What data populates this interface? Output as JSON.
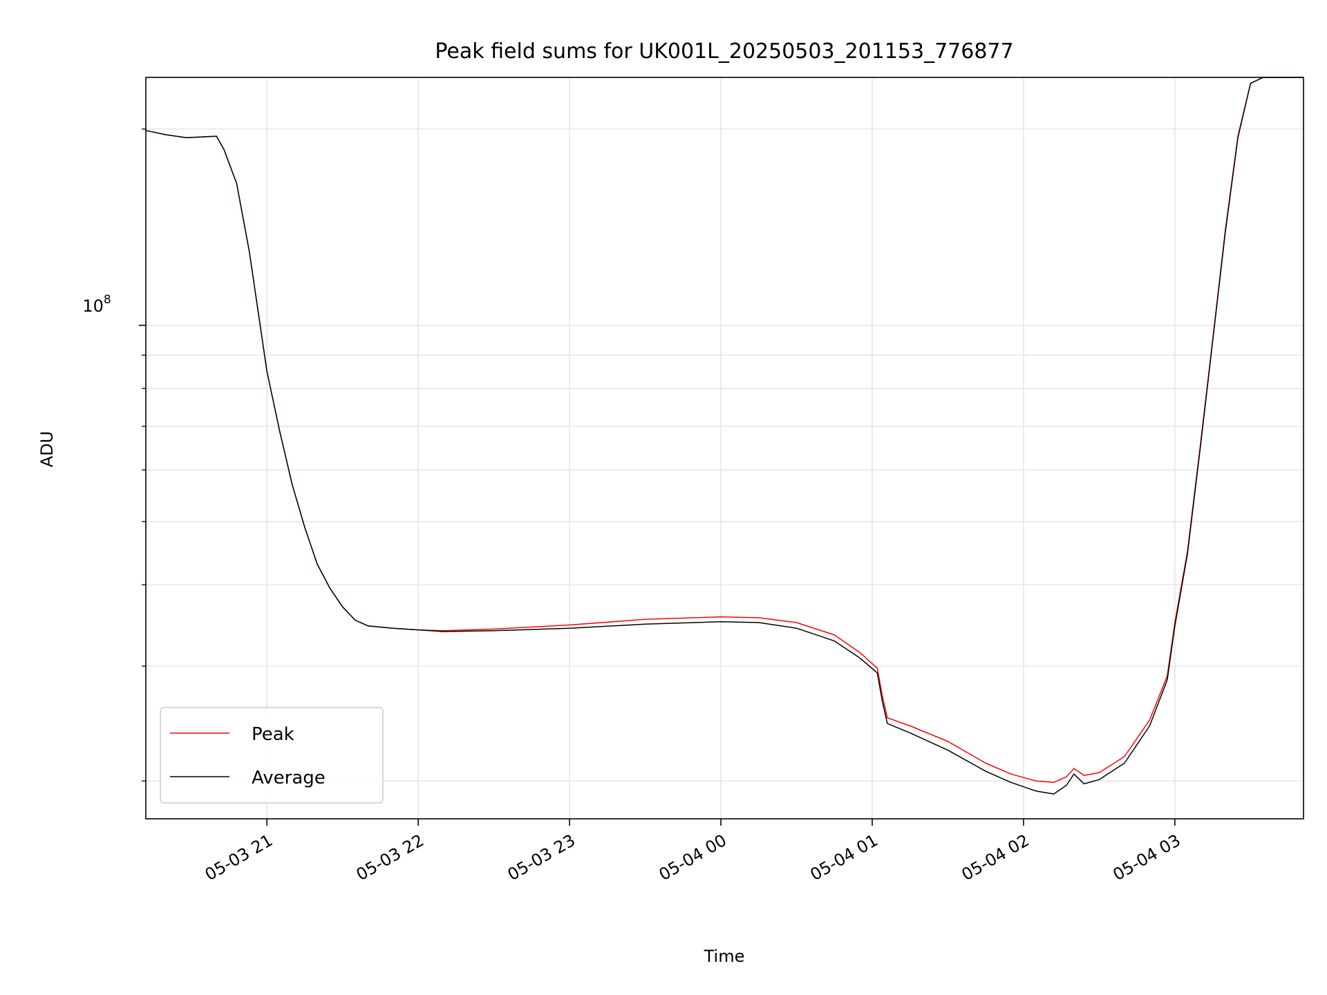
{
  "chart_data": {
    "type": "line",
    "title": "Peak field sums for UK001L_20250503_201153_776877",
    "xlabel": "Time",
    "ylabel": "ADU",
    "yscale": "log",
    "y_major_tick_label": {
      "base": "10",
      "exponent": "8",
      "value": 100000000
    },
    "y_minor_ticks": [
      20000000,
      30000000,
      40000000,
      50000000,
      60000000,
      70000000,
      80000000,
      90000000,
      200000000
    ],
    "ylim": [
      17500000,
      240000000
    ],
    "xlim": [
      "2025-05-03 20:12",
      "2025-05-04 03:51"
    ],
    "xtick_values": [
      "2025-05-03 21:00",
      "2025-05-03 22:00",
      "2025-05-03 23:00",
      "2025-05-04 00:00",
      "2025-05-04 01:00",
      "2025-05-04 02:00",
      "2025-05-04 03:00"
    ],
    "xtick_labels": [
      "05-03 21",
      "05-03 22",
      "05-03 23",
      "05-04 00",
      "05-04 01",
      "05-04 02",
      "05-04 03"
    ],
    "grid": true,
    "legend_position": "lower-left",
    "series": [
      {
        "name": "Peak",
        "color": "#ff0000",
        "points": [
          [
            "2025-05-03 20:12",
            199000000
          ],
          [
            "2025-05-03 20:20",
            196000000
          ],
          [
            "2025-05-03 20:28",
            194000000
          ],
          [
            "2025-05-03 20:40",
            195000000
          ],
          [
            "2025-05-03 20:43",
            186000000
          ],
          [
            "2025-05-03 20:48",
            165000000
          ],
          [
            "2025-05-03 20:53",
            130000000
          ],
          [
            "2025-05-03 21:00",
            85000000
          ],
          [
            "2025-05-03 21:05",
            69000000
          ],
          [
            "2025-05-03 21:10",
            57000000
          ],
          [
            "2025-05-03 21:15",
            49000000
          ],
          [
            "2025-05-03 21:20",
            43000000
          ],
          [
            "2025-05-03 21:25",
            39500000
          ],
          [
            "2025-05-03 21:30",
            37000000
          ],
          [
            "2025-05-03 21:35",
            35300000
          ],
          [
            "2025-05-03 21:40",
            34600000
          ],
          [
            "2025-05-03 21:50",
            34300000
          ],
          [
            "2025-05-03 22:00",
            34100000
          ],
          [
            "2025-05-03 22:10",
            34000000
          ],
          [
            "2025-05-03 22:30",
            34200000
          ],
          [
            "2025-05-03 23:00",
            34700000
          ],
          [
            "2025-05-03 23:30",
            35400000
          ],
          [
            "2025-05-04 00:00",
            35700000
          ],
          [
            "2025-05-04 00:15",
            35600000
          ],
          [
            "2025-05-04 00:30",
            35000000
          ],
          [
            "2025-05-04 00:45",
            33500000
          ],
          [
            "2025-05-04 00:55",
            31500000
          ],
          [
            "2025-05-04 01:02",
            29800000
          ],
          [
            "2025-05-04 01:04",
            27000000
          ],
          [
            "2025-05-04 01:06",
            25000000
          ],
          [
            "2025-05-04 01:15",
            24300000
          ],
          [
            "2025-05-04 01:30",
            23000000
          ],
          [
            "2025-05-04 01:45",
            21300000
          ],
          [
            "2025-05-04 01:55",
            20500000
          ],
          [
            "2025-05-04 02:05",
            20000000
          ],
          [
            "2025-05-04 02:12",
            19900000
          ],
          [
            "2025-05-04 02:17",
            20300000
          ],
          [
            "2025-05-04 02:20",
            20900000
          ],
          [
            "2025-05-04 02:24",
            20400000
          ],
          [
            "2025-05-04 02:30",
            20600000
          ],
          [
            "2025-05-04 02:40",
            21800000
          ],
          [
            "2025-05-04 02:50",
            24800000
          ],
          [
            "2025-05-04 02:57",
            29000000
          ],
          [
            "2025-05-04 03:00",
            35000000
          ],
          [
            "2025-05-04 03:05",
            45000000
          ],
          [
            "2025-05-04 03:10",
            65000000
          ],
          [
            "2025-05-04 03:15",
            95000000
          ],
          [
            "2025-05-04 03:20",
            140000000
          ],
          [
            "2025-05-04 03:25",
            195000000
          ],
          [
            "2025-05-04 03:30",
            235000000
          ],
          [
            "2025-05-04 03:35",
            240000000
          ],
          [
            "2025-05-04 03:51",
            240000000
          ]
        ]
      },
      {
        "name": "Average",
        "color": "#000000",
        "points": [
          [
            "2025-05-03 20:12",
            199000000
          ],
          [
            "2025-05-03 20:20",
            196000000
          ],
          [
            "2025-05-03 20:28",
            194000000
          ],
          [
            "2025-05-03 20:40",
            195000000
          ],
          [
            "2025-05-03 20:43",
            186000000
          ],
          [
            "2025-05-03 20:48",
            165000000
          ],
          [
            "2025-05-03 20:53",
            130000000
          ],
          [
            "2025-05-03 21:00",
            85000000
          ],
          [
            "2025-05-03 21:05",
            69000000
          ],
          [
            "2025-05-03 21:10",
            57000000
          ],
          [
            "2025-05-03 21:15",
            49000000
          ],
          [
            "2025-05-03 21:20",
            43000000
          ],
          [
            "2025-05-03 21:25",
            39500000
          ],
          [
            "2025-05-03 21:30",
            37000000
          ],
          [
            "2025-05-03 21:35",
            35300000
          ],
          [
            "2025-05-03 21:40",
            34600000
          ],
          [
            "2025-05-03 21:50",
            34300000
          ],
          [
            "2025-05-03 22:00",
            34100000
          ],
          [
            "2025-05-03 22:10",
            33900000
          ],
          [
            "2025-05-03 22:30",
            34000000
          ],
          [
            "2025-05-03 23:00",
            34300000
          ],
          [
            "2025-05-03 23:30",
            34800000
          ],
          [
            "2025-05-04 00:00",
            35100000
          ],
          [
            "2025-05-04 00:15",
            35000000
          ],
          [
            "2025-05-04 00:30",
            34300000
          ],
          [
            "2025-05-04 00:45",
            32800000
          ],
          [
            "2025-05-04 00:55",
            30900000
          ],
          [
            "2025-05-04 01:02",
            29300000
          ],
          [
            "2025-05-04 01:04",
            26500000
          ],
          [
            "2025-05-04 01:06",
            24500000
          ],
          [
            "2025-05-04 01:15",
            23700000
          ],
          [
            "2025-05-04 01:30",
            22300000
          ],
          [
            "2025-05-04 01:45",
            20700000
          ],
          [
            "2025-05-04 01:55",
            19900000
          ],
          [
            "2025-05-04 02:05",
            19300000
          ],
          [
            "2025-05-04 02:12",
            19100000
          ],
          [
            "2025-05-04 02:17",
            19700000
          ],
          [
            "2025-05-04 02:20",
            20500000
          ],
          [
            "2025-05-04 02:24",
            19800000
          ],
          [
            "2025-05-04 02:30",
            20100000
          ],
          [
            "2025-05-04 02:40",
            21300000
          ],
          [
            "2025-05-04 02:50",
            24300000
          ],
          [
            "2025-05-04 02:57",
            28600000
          ],
          [
            "2025-05-04 03:00",
            34600000
          ],
          [
            "2025-05-04 03:05",
            44600000
          ],
          [
            "2025-05-04 03:10",
            64500000
          ],
          [
            "2025-05-04 03:15",
            94500000
          ],
          [
            "2025-05-04 03:20",
            139000000
          ],
          [
            "2025-05-04 03:25",
            194000000
          ],
          [
            "2025-05-04 03:30",
            235000000
          ],
          [
            "2025-05-04 03:35",
            240000000
          ],
          [
            "2025-05-04 03:51",
            240000000
          ]
        ]
      }
    ]
  }
}
